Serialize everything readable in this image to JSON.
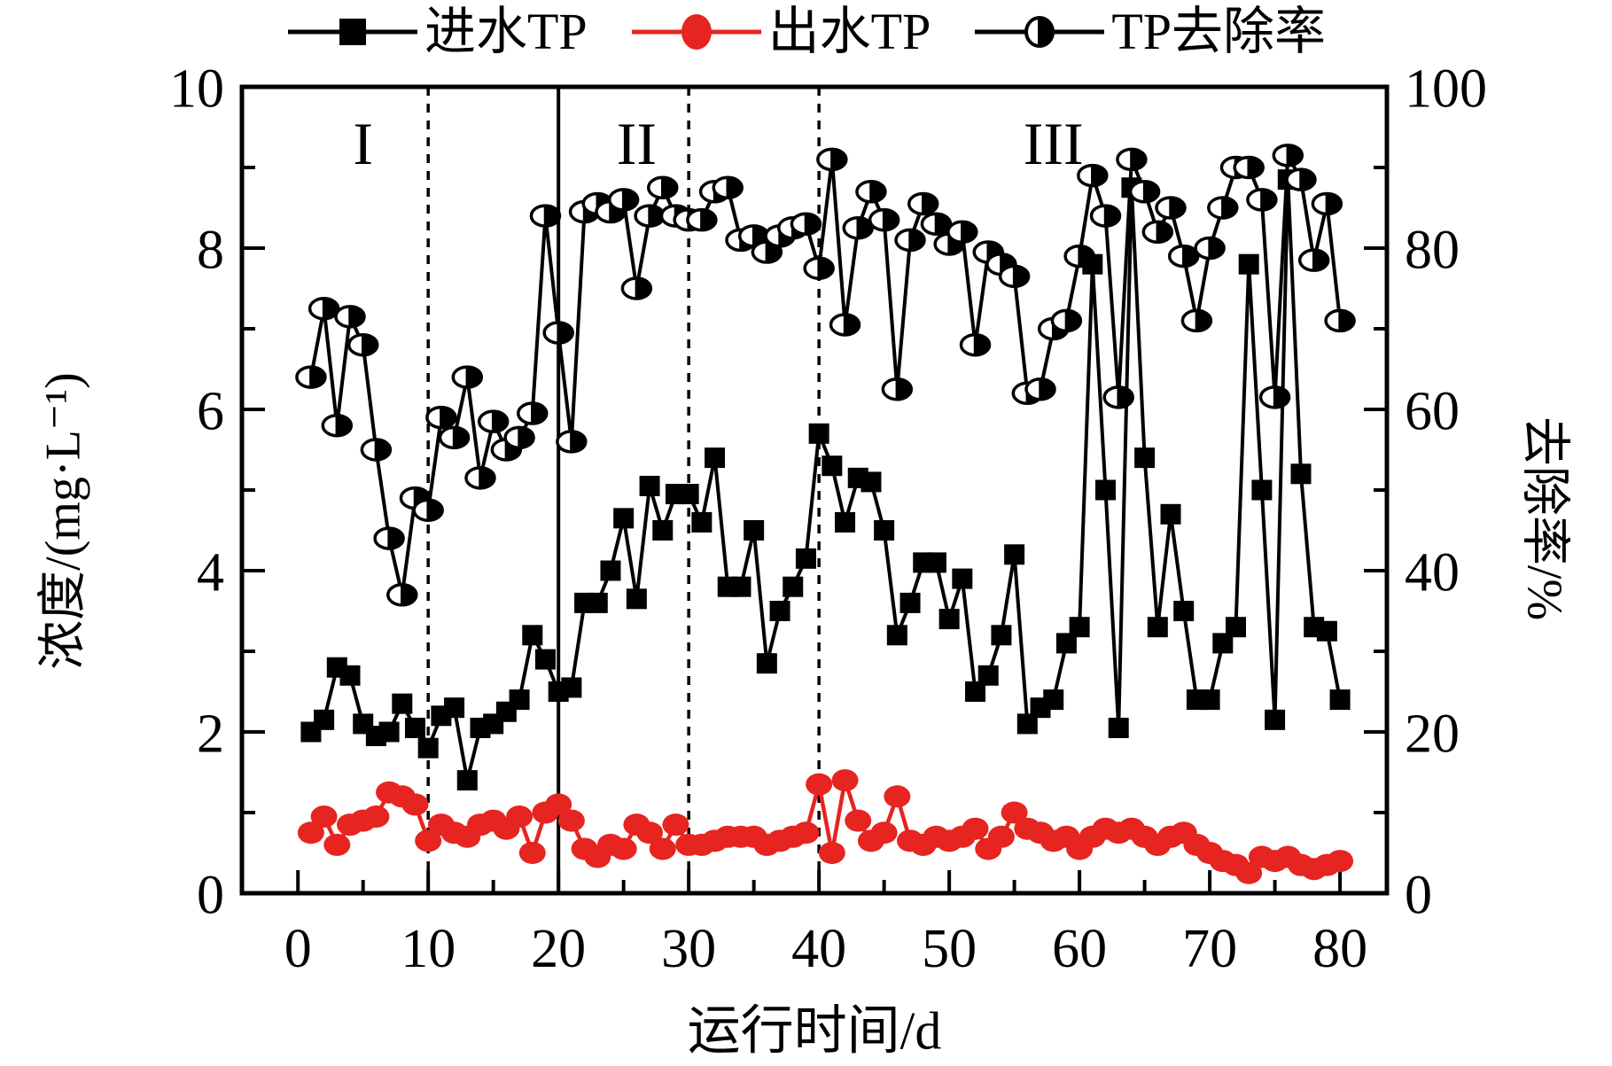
{
  "figure": {
    "background": "#ffffff",
    "accent_red": "#e62420",
    "black": "#000000",
    "legend": [
      {
        "label": "进水TP",
        "marker": "filled-square",
        "color": "#000000"
      },
      {
        "label": "出水TP",
        "marker": "filled-circle",
        "color": "#e62420"
      },
      {
        "label": "TP去除率",
        "marker": "half-filled-circle",
        "color": "#000000"
      }
    ],
    "axis_titles": {
      "left": "浓度/(mg·L⁻¹)",
      "right": "去除率/%",
      "bottom": "运行时间/d"
    },
    "phases": [
      {
        "label": "I",
        "center_day": 5
      },
      {
        "label": "II",
        "center_day": 26
      },
      {
        "label": "III",
        "center_day": 58
      }
    ],
    "phase_lines": [
      {
        "day": 10,
        "style": "dashed"
      },
      {
        "day": 20,
        "style": "solid"
      },
      {
        "day": 30,
        "style": "dashed"
      },
      {
        "day": 40,
        "style": "dashed"
      }
    ]
  },
  "chart_data": {
    "type": "line",
    "title": "",
    "xlabel": "运行时间/d",
    "ylabel_left": "浓度/(mg·L⁻¹)",
    "ylabel_right": "去除率/%",
    "xlim": [
      -4.3,
      83.6
    ],
    "ylim_left": [
      0,
      10
    ],
    "ylim_right": [
      0,
      100
    ],
    "x_major_ticks": [
      0,
      10,
      20,
      30,
      40,
      50,
      60,
      70,
      80
    ],
    "x_minor_step": 5,
    "left_major_ticks": [
      0,
      2,
      4,
      6,
      8,
      10
    ],
    "left_minor_step": 1,
    "right_major_ticks": [
      0,
      20,
      40,
      60,
      80,
      100
    ],
    "right_minor_step": 10,
    "grid": false,
    "legend_position": "top",
    "x": [
      1,
      2,
      3,
      4,
      5,
      6,
      7,
      8,
      9,
      10,
      11,
      12,
      13,
      14,
      15,
      16,
      17,
      18,
      19,
      20,
      21,
      22,
      23,
      24,
      25,
      26,
      27,
      28,
      29,
      30,
      31,
      32,
      33,
      34,
      35,
      36,
      37,
      38,
      39,
      40,
      41,
      42,
      43,
      44,
      45,
      46,
      47,
      48,
      49,
      50,
      51,
      52,
      53,
      54,
      55,
      56,
      57,
      58,
      59,
      60,
      61,
      62,
      63,
      64,
      65,
      66,
      67,
      68,
      69,
      70,
      71,
      72,
      73,
      74,
      75,
      76,
      77,
      78,
      79,
      80
    ],
    "series": [
      {
        "name": "进水TP",
        "axis": "left",
        "marker": "square",
        "color": "#000000",
        "values": [
          2.0,
          2.15,
          2.8,
          2.7,
          2.1,
          1.95,
          2.0,
          2.35,
          2.05,
          1.8,
          2.2,
          2.3,
          1.4,
          2.05,
          2.1,
          2.25,
          2.4,
          3.2,
          2.9,
          2.5,
          2.55,
          3.6,
          3.6,
          4.0,
          4.65,
          3.65,
          5.05,
          4.5,
          4.95,
          4.95,
          4.6,
          5.4,
          3.8,
          3.8,
          4.5,
          2.85,
          3.5,
          3.8,
          4.15,
          5.7,
          5.3,
          4.6,
          5.15,
          5.1,
          4.5,
          3.2,
          3.6,
          4.1,
          4.1,
          3.4,
          3.9,
          2.5,
          2.7,
          3.2,
          4.2,
          2.1,
          2.3,
          2.4,
          3.1,
          3.3,
          7.8,
          5.0,
          2.05,
          8.75,
          5.4,
          3.3,
          4.7,
          3.5,
          2.4,
          2.4,
          3.1,
          3.3,
          7.8,
          5.0,
          2.15,
          8.85,
          5.2,
          3.3,
          3.25,
          2.4
        ]
      },
      {
        "name": "出水TP",
        "axis": "left",
        "marker": "circle",
        "color": "#e62420",
        "values": [
          0.75,
          0.95,
          0.6,
          0.85,
          0.9,
          0.95,
          1.25,
          1.2,
          1.1,
          0.65,
          0.85,
          0.75,
          0.7,
          0.85,
          0.9,
          0.8,
          0.95,
          0.5,
          1.0,
          1.1,
          0.9,
          0.55,
          0.45,
          0.6,
          0.55,
          0.85,
          0.75,
          0.55,
          0.85,
          0.6,
          0.6,
          0.65,
          0.7,
          0.7,
          0.7,
          0.6,
          0.65,
          0.7,
          0.75,
          1.35,
          0.5,
          1.4,
          0.9,
          0.65,
          0.75,
          1.2,
          0.65,
          0.6,
          0.7,
          0.65,
          0.7,
          0.8,
          0.55,
          0.7,
          1.0,
          0.8,
          0.75,
          0.65,
          0.7,
          0.55,
          0.7,
          0.8,
          0.75,
          0.8,
          0.7,
          0.6,
          0.7,
          0.75,
          0.6,
          0.5,
          0.4,
          0.35,
          0.25,
          0.45,
          0.4,
          0.45,
          0.35,
          0.3,
          0.35,
          0.4
        ]
      },
      {
        "name": "TP去除率",
        "axis": "right",
        "marker": "half-circle",
        "color": "#000000",
        "values": [
          64,
          72.5,
          58,
          71.5,
          68,
          55,
          44,
          37,
          49,
          47.5,
          59,
          56.5,
          64,
          51.5,
          58.5,
          55,
          56.5,
          59.5,
          84,
          69.5,
          56,
          84.5,
          85.5,
          84.5,
          86,
          75,
          84,
          87.5,
          84,
          83.5,
          83.5,
          87,
          87.5,
          81,
          81.5,
          79.5,
          81.5,
          82.5,
          83,
          77.5,
          91,
          70.5,
          82.5,
          87,
          83.5,
          62.5,
          81,
          85.5,
          83,
          80.5,
          82,
          68,
          79.5,
          78,
          76.5,
          62,
          62.5,
          70,
          71,
          79,
          89,
          84,
          61.5,
          91,
          87,
          82,
          85,
          79,
          71,
          80,
          85,
          90,
          90,
          86,
          61.5,
          91.5,
          88.5,
          78.5,
          85.5,
          71
        ]
      }
    ]
  }
}
